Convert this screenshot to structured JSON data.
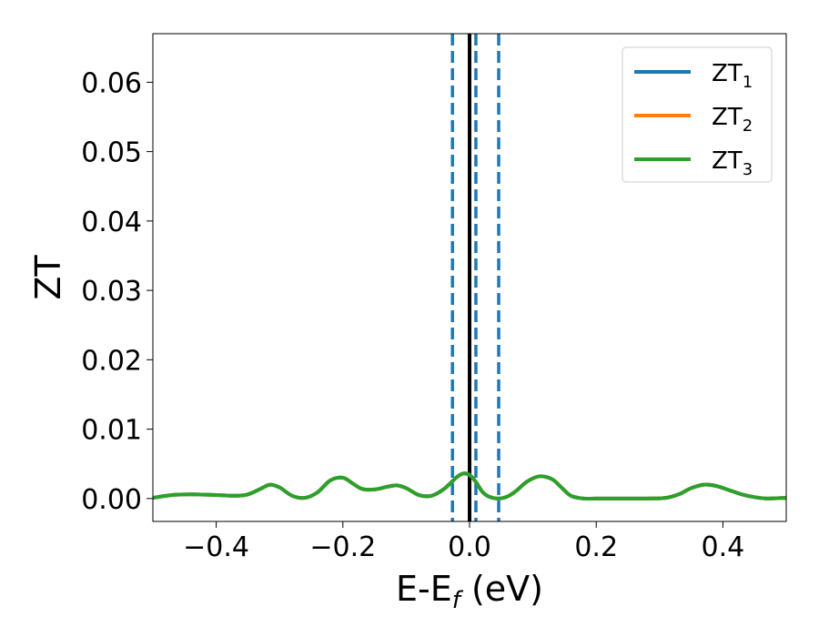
{
  "chart_data": {
    "type": "line",
    "title": "",
    "xlabel": {
      "main": "E-E",
      "sub": "f",
      "suffix": " (eV)"
    },
    "ylabel": "ZT",
    "xlim": [
      -0.5,
      0.5
    ],
    "ylim": [
      -0.0033,
      0.067
    ],
    "x_ticks": [
      -0.4,
      -0.2,
      0.0,
      0.2,
      0.4
    ],
    "x_tick_labels": [
      "−0.4",
      "−0.2",
      "0.0",
      "0.2",
      "0.4"
    ],
    "y_ticks": [
      0.0,
      0.01,
      0.02,
      0.03,
      0.04,
      0.05,
      0.06
    ],
    "y_tick_labels": [
      "0.00",
      "0.01",
      "0.02",
      "0.03",
      "0.04",
      "0.05",
      "0.06"
    ],
    "grid": false,
    "legend_position": "top-right",
    "series": [
      {
        "name": "ZT",
        "sub": "1",
        "color": "#1f77b4",
        "x": [
          -0.5,
          -0.47,
          -0.44,
          -0.4,
          -0.37,
          -0.35,
          -0.33,
          -0.315,
          -0.3,
          -0.28,
          -0.26,
          -0.24,
          -0.22,
          -0.2,
          -0.185,
          -0.17,
          -0.15,
          -0.13,
          -0.115,
          -0.1,
          -0.08,
          -0.06,
          -0.04,
          -0.02,
          -0.01,
          0.0,
          0.01,
          0.02,
          0.03,
          0.045,
          0.06,
          0.075,
          0.09,
          0.11,
          0.13,
          0.145,
          0.16,
          0.18,
          0.2,
          0.24,
          0.28,
          0.31,
          0.33,
          0.35,
          0.37,
          0.39,
          0.41,
          0.43,
          0.45,
          0.47,
          0.5
        ],
        "y": [
          0.0001,
          0.0005,
          0.0006,
          0.0005,
          0.0004,
          0.0006,
          0.0014,
          0.002,
          0.0016,
          0.0004,
          0.0001,
          0.0009,
          0.0026,
          0.003,
          0.0022,
          0.0014,
          0.0013,
          0.0017,
          0.0019,
          0.0015,
          0.0005,
          0.0004,
          0.0014,
          0.0031,
          0.0036,
          0.0034,
          0.0024,
          0.001,
          0.0003,
          0.0,
          0.0003,
          0.0012,
          0.0024,
          0.0032,
          0.0028,
          0.0016,
          0.0004,
          0.0,
          0.0,
          0.0,
          0.0,
          0.0001,
          0.0006,
          0.0015,
          0.002,
          0.0018,
          0.0012,
          0.0006,
          0.0002,
          0.0,
          0.0001
        ]
      },
      {
        "name": "ZT",
        "sub": "2",
        "color": "#ff7f0e",
        "x": [
          -0.5,
          -0.47,
          -0.44,
          -0.4,
          -0.37,
          -0.35,
          -0.33,
          -0.315,
          -0.3,
          -0.28,
          -0.26,
          -0.24,
          -0.22,
          -0.2,
          -0.185,
          -0.17,
          -0.15,
          -0.13,
          -0.115,
          -0.1,
          -0.08,
          -0.06,
          -0.04,
          -0.02,
          -0.01,
          0.0,
          0.01,
          0.02,
          0.03,
          0.045,
          0.06,
          0.075,
          0.09,
          0.11,
          0.13,
          0.145,
          0.16,
          0.18,
          0.2,
          0.24,
          0.28,
          0.31,
          0.33,
          0.35,
          0.37,
          0.39,
          0.41,
          0.43,
          0.45,
          0.47,
          0.5
        ],
        "y": [
          0.0001,
          0.0005,
          0.0006,
          0.0005,
          0.0004,
          0.0006,
          0.0014,
          0.002,
          0.0016,
          0.0004,
          0.0001,
          0.0009,
          0.0026,
          0.003,
          0.0022,
          0.0014,
          0.0013,
          0.0017,
          0.0019,
          0.0015,
          0.0005,
          0.0004,
          0.0014,
          0.0031,
          0.0036,
          0.0034,
          0.0024,
          0.001,
          0.0003,
          0.0,
          0.0003,
          0.0012,
          0.0024,
          0.0032,
          0.0028,
          0.0016,
          0.0004,
          0.0,
          0.0,
          0.0,
          0.0,
          0.0001,
          0.0006,
          0.0015,
          0.002,
          0.0018,
          0.0012,
          0.0006,
          0.0002,
          0.0,
          0.0001
        ]
      },
      {
        "name": "ZT",
        "sub": "3",
        "color": "#2ca02c",
        "x": [
          -0.5,
          -0.47,
          -0.44,
          -0.4,
          -0.37,
          -0.35,
          -0.33,
          -0.315,
          -0.3,
          -0.28,
          -0.26,
          -0.24,
          -0.22,
          -0.2,
          -0.185,
          -0.17,
          -0.15,
          -0.13,
          -0.115,
          -0.1,
          -0.08,
          -0.06,
          -0.04,
          -0.02,
          -0.01,
          0.0,
          0.01,
          0.02,
          0.03,
          0.045,
          0.06,
          0.075,
          0.09,
          0.11,
          0.13,
          0.145,
          0.16,
          0.18,
          0.2,
          0.24,
          0.28,
          0.31,
          0.33,
          0.35,
          0.37,
          0.39,
          0.41,
          0.43,
          0.45,
          0.47,
          0.5
        ],
        "y": [
          0.0001,
          0.0005,
          0.0006,
          0.0005,
          0.0004,
          0.0006,
          0.0014,
          0.002,
          0.0016,
          0.0004,
          0.0001,
          0.0009,
          0.0026,
          0.003,
          0.0022,
          0.0014,
          0.0013,
          0.0017,
          0.0019,
          0.0015,
          0.0005,
          0.0004,
          0.0014,
          0.0031,
          0.0036,
          0.0034,
          0.0024,
          0.001,
          0.0003,
          0.0,
          0.0003,
          0.0012,
          0.0024,
          0.0032,
          0.0028,
          0.0016,
          0.0004,
          0.0,
          0.0,
          0.0,
          0.0,
          0.0001,
          0.0006,
          0.0015,
          0.002,
          0.0018,
          0.0012,
          0.0006,
          0.0002,
          0.0,
          0.0001
        ]
      }
    ],
    "vertical_lines": [
      {
        "x": 0.0,
        "style": "solid",
        "color": "#000000"
      },
      {
        "x": -0.027,
        "style": "dashed",
        "color": "#1f77b4"
      },
      {
        "x": 0.01,
        "style": "dashed",
        "color": "#1f77b4"
      },
      {
        "x": 0.046,
        "style": "dashed",
        "color": "#1f77b4"
      }
    ]
  }
}
